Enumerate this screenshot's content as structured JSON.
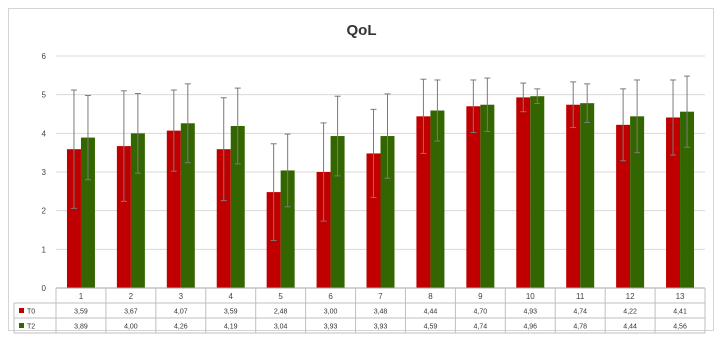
{
  "chart_data": {
    "type": "bar",
    "title": "QoL",
    "categories": [
      "1",
      "2",
      "3",
      "4",
      "5",
      "6",
      "7",
      "8",
      "9",
      "10",
      "11",
      "12",
      "13"
    ],
    "ylim": [
      0,
      6
    ],
    "yticks": [
      0,
      1,
      2,
      3,
      4,
      5,
      6
    ],
    "grid": true,
    "legend": "data-table",
    "series": [
      {
        "name": "T0",
        "color": "#c00000",
        "values": [
          3.59,
          3.67,
          4.07,
          3.59,
          2.48,
          3.0,
          3.48,
          4.44,
          4.7,
          4.93,
          4.74,
          4.22,
          4.41
        ],
        "labels": [
          "3,59",
          "3,67",
          "4,07",
          "3,59",
          "2,48",
          "3,00",
          "3,48",
          "4,44",
          "4,70",
          "4,93",
          "4,74",
          "4,22",
          "4,41"
        ],
        "error_upper": [
          5.12,
          5.1,
          5.12,
          4.92,
          3.73,
          4.27,
          4.62,
          5.4,
          5.38,
          5.3,
          5.33,
          5.15,
          5.38
        ]
      },
      {
        "name": "T2",
        "color": "#336600",
        "values": [
          3.89,
          4.0,
          4.26,
          4.19,
          3.04,
          3.93,
          3.93,
          4.59,
          4.74,
          4.96,
          4.78,
          4.44,
          4.56
        ],
        "labels": [
          "3,89",
          "4,00",
          "4,26",
          "4,19",
          "3,04",
          "3,93",
          "3,93",
          "4,59",
          "4,74",
          "4,96",
          "4,78",
          "4,44",
          "4,56"
        ],
        "error_upper": [
          4.98,
          5.03,
          5.28,
          5.17,
          3.98,
          4.96,
          5.02,
          5.38,
          5.43,
          5.15,
          5.28,
          5.38,
          5.48
        ]
      }
    ]
  }
}
